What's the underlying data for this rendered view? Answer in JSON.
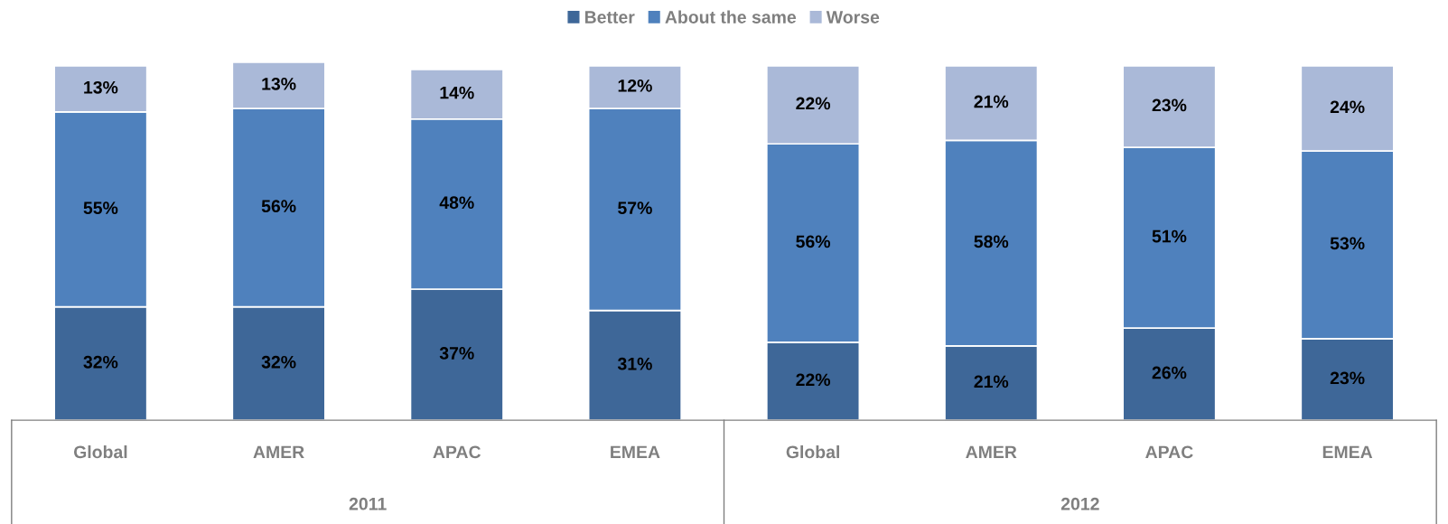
{
  "chart_data": {
    "type": "bar",
    "stacked": true,
    "legend": "top",
    "grid": false,
    "categories": [
      "Global",
      "AMER",
      "APAC",
      "EMEA",
      "Global",
      "AMER",
      "APAC",
      "EMEA"
    ],
    "series": [
      {
        "name": "Better",
        "color": "#3e6798",
        "values": [
          32,
          32,
          37,
          31,
          22,
          21,
          26,
          23
        ],
        "value_labels": [
          "32%",
          "32%",
          "37%",
          "31%",
          "22%",
          "21%",
          "26%",
          "23%"
        ]
      },
      {
        "name": "About the same",
        "color": "#4f81bd",
        "values": [
          55,
          56,
          48,
          57,
          56,
          58,
          51,
          53
        ],
        "value_labels": [
          "55%",
          "56%",
          "48%",
          "57%",
          "56%",
          "58%",
          "51%",
          "53%"
        ]
      },
      {
        "name": "Worse",
        "color": "#aab9d8",
        "values": [
          13,
          13,
          14,
          12,
          22,
          21,
          23,
          24
        ],
        "value_labels": [
          "13%",
          "13%",
          "14%",
          "12%",
          "22%",
          "21%",
          "23%",
          "24%"
        ]
      }
    ],
    "annotations": [
      "2011",
      "2012"
    ]
  }
}
